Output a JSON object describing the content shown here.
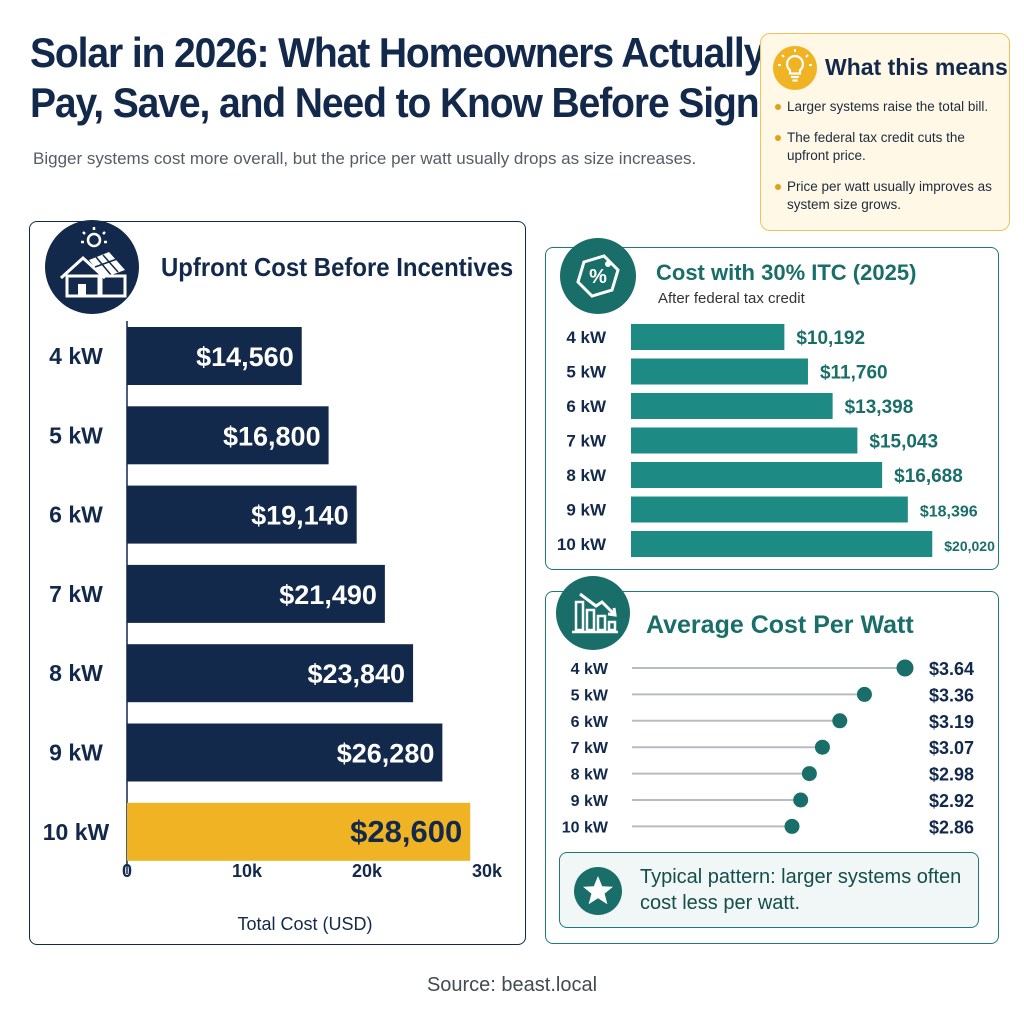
{
  "header": {
    "title_line1": "Solar in 2026: What Homeowners Actually",
    "title_line2": "Pay, Save, and Need to Know Before Signing",
    "subtitle": "Bigger systems cost more overall, but the price per watt usually drops as size increases."
  },
  "callout": {
    "title": "What this means",
    "icon": "lightbulb-icon",
    "points": [
      "Larger systems raise the total bill.",
      "The federal tax credit cuts the upfront price.",
      "Price per watt usually improves as system size grows."
    ]
  },
  "colors": {
    "navy": "#13294b",
    "gold": "#f0b323",
    "teal": "#1e8a84",
    "teal_dark": "#1a6e6a"
  },
  "chart_data": [
    {
      "type": "bar",
      "orientation": "horizontal",
      "title": "Upfront Cost Before Incentives",
      "icon": "solar-house-icon",
      "categories": [
        "4 kW",
        "5 kW",
        "6 kW",
        "7 kW",
        "8 kW",
        "9 kW",
        "10 kW"
      ],
      "values": [
        14560,
        16800,
        19140,
        21490,
        23840,
        26280,
        28600
      ],
      "labels": [
        "$14,560",
        "$16,800",
        "$19,140",
        "$21,490",
        "$23,840",
        "$26,280",
        "$28,600"
      ],
      "highlight_index": 6,
      "xlabel": "Total Cost (USD)",
      "xticks": [
        0,
        10000,
        20000,
        30000
      ],
      "xtick_labels": [
        "0",
        "10k",
        "20k",
        "30k"
      ],
      "xlim": [
        0,
        33000
      ]
    },
    {
      "type": "bar",
      "orientation": "horizontal",
      "title": "Cost with 30% ITC (2025)",
      "subtitle": "After federal tax credit",
      "icon": "percent-tag-icon",
      "categories": [
        "4 kW",
        "5 kW",
        "6 kW",
        "7 kW",
        "8 kW",
        "9 kW",
        "10 kW"
      ],
      "values": [
        10192,
        11760,
        13398,
        15043,
        16688,
        18396,
        20020
      ],
      "labels": [
        "$10,192",
        "$11,760",
        "$13,398",
        "$15,043",
        "$16,688",
        "$18,396",
        "$20,020"
      ],
      "xlim": [
        0,
        20600
      ]
    },
    {
      "type": "scatter",
      "style": "lollipop",
      "title": "Average Cost Per Watt",
      "icon": "declining-bars-icon",
      "categories": [
        "4 kW",
        "5 kW",
        "6 kW",
        "7 kW",
        "8 kW",
        "9 kW",
        "10 kW"
      ],
      "values": [
        3.64,
        3.36,
        3.19,
        3.07,
        2.98,
        2.92,
        2.86
      ],
      "labels": [
        "$3.64",
        "$3.36",
        "$3.19",
        "$3.07",
        "$2.98",
        "$2.92",
        "$2.86"
      ],
      "xlim": [
        0,
        3.8
      ],
      "note": {
        "icon": "star-icon",
        "text": "Typical pattern: larger systems often cost less per watt."
      }
    }
  ],
  "footer": {
    "source": "Source: beast.local"
  }
}
